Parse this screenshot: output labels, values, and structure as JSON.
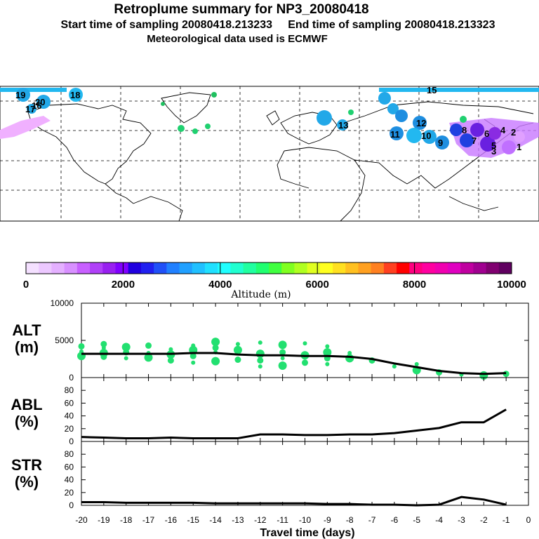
{
  "header": {
    "title": "Retroplume summary for NP3_20080418",
    "subtitle": "Start time of sampling 20080418.213233     End time of sampling 20080418.213323",
    "met": "Meteorological data used is ECMWF"
  },
  "map": {
    "plume_labels": [
      {
        "text": "19",
        "color": "#22a8e8"
      },
      {
        "text": "20",
        "color": "#22a8e8"
      },
      {
        "text": "18",
        "color": "#22a8e8"
      },
      {
        "text": "17",
        "color": "#22a8e8"
      },
      {
        "text": "16",
        "color": "#22a8e8"
      },
      {
        "text": "15",
        "color": "#22a8e8"
      },
      {
        "text": "13",
        "color": "#1e8ee0"
      },
      {
        "text": "12",
        "color": "#1e8ee0"
      },
      {
        "text": "11",
        "color": "#1e8ee0"
      },
      {
        "text": "10",
        "color": "#22a8e8"
      },
      {
        "text": "9",
        "color": "#1e8ee0"
      },
      {
        "text": "8",
        "color": "#2040e0"
      },
      {
        "text": "7",
        "color": "#2040e0"
      },
      {
        "text": "6",
        "color": "#8a2be2"
      },
      {
        "text": "5",
        "color": "#8a2be2"
      },
      {
        "text": "4",
        "color": "#9b30ff"
      },
      {
        "text": "3",
        "color": "#9b30ff"
      },
      {
        "text": "2",
        "color": "#c060ff"
      },
      {
        "text": "1",
        "color": "#e0a0ff"
      }
    ]
  },
  "colorbar": {
    "tick_labels": [
      "0",
      "2000",
      "4000",
      "6000",
      "8000",
      "10000"
    ],
    "title": "Altitude (m)",
    "colors": [
      "#f4e0ff",
      "#ecc8ff",
      "#e4b0ff",
      "#d890ff",
      "#c860ff",
      "#b040f8",
      "#9820f0",
      "#8000ff",
      "#2000e0",
      "#2020f0",
      "#2050f8",
      "#2080ff",
      "#20a0ff",
      "#20c0ff",
      "#20e0ff",
      "#20ffff",
      "#20ffd0",
      "#20ffa0",
      "#20ff70",
      "#40ff40",
      "#80ff20",
      "#b0ff20",
      "#e0ff20",
      "#ffff20",
      "#ffe020",
      "#ffc020",
      "#ffa020",
      "#ff8020",
      "#ff4020",
      "#ff0000",
      "#ff0080",
      "#ff00a0",
      "#f000b0",
      "#e000c0",
      "#c000a0",
      "#a00090",
      "#800070",
      "#600060"
    ]
  },
  "chart_data": [
    {
      "type": "line",
      "panel": "ALT",
      "ylabel": "ALT\n(m)",
      "ylabel_line1": "ALT",
      "ylabel_line2": "(m)",
      "ylim": [
        0,
        10000
      ],
      "ytick_labels": [
        "0",
        "5000",
        "10000"
      ],
      "x": [
        -20,
        -19,
        -18,
        -17,
        -16,
        -15,
        -14,
        -13,
        -12,
        -11,
        -10,
        -9,
        -8,
        -7,
        -6,
        -5,
        -4,
        -3,
        -2,
        -1
      ],
      "values": [
        3200,
        3200,
        3200,
        3200,
        3200,
        3300,
        3300,
        3100,
        3000,
        3000,
        2900,
        2900,
        2800,
        2500,
        1900,
        1400,
        900,
        600,
        500,
        600
      ],
      "scatter_color": "#22e070",
      "scatter": [
        {
          "x": -20,
          "ys": [
            2900,
            3500,
            4200
          ]
        },
        {
          "x": -19,
          "ys": [
            2800,
            3300,
            4000,
            4500
          ]
        },
        {
          "x": -18,
          "ys": [
            2600,
            3400,
            4100
          ]
        },
        {
          "x": -17,
          "ys": [
            2700,
            3300,
            4300
          ]
        },
        {
          "x": -16,
          "ys": [
            2300,
            3100,
            3800
          ]
        },
        {
          "x": -15,
          "ys": [
            2000,
            2900,
            3700,
            4300
          ]
        },
        {
          "x": -14,
          "ys": [
            2200,
            3400,
            4000,
            4800
          ]
        },
        {
          "x": -13,
          "ys": [
            2400,
            3700,
            4500
          ]
        },
        {
          "x": -12,
          "ys": [
            1500,
            2300,
            3200,
            4700
          ]
        },
        {
          "x": -11,
          "ys": [
            1600,
            2600,
            3400,
            4400
          ]
        },
        {
          "x": -10,
          "ys": [
            2000,
            3000,
            4600
          ]
        },
        {
          "x": -9,
          "ys": [
            1800,
            2600,
            3400,
            4200
          ]
        },
        {
          "x": -8,
          "ys": [
            2600,
            3300
          ]
        },
        {
          "x": -7,
          "ys": [
            2300
          ]
        },
        {
          "x": -6,
          "ys": [
            1500
          ]
        },
        {
          "x": -5,
          "ys": [
            1000,
            1800
          ]
        },
        {
          "x": -4,
          "ys": [
            700
          ]
        },
        {
          "x": -3,
          "ys": [
            400
          ]
        },
        {
          "x": -2,
          "ys": [
            300
          ]
        },
        {
          "x": -1,
          "ys": [
            500
          ]
        }
      ]
    },
    {
      "type": "line",
      "panel": "ABL",
      "ylabel_line1": "ABL",
      "ylabel_line2": "(%)",
      "ylim": [
        0,
        100
      ],
      "ytick_labels": [
        "0",
        "20",
        "40",
        "60",
        "80"
      ],
      "x": [
        -20,
        -19,
        -18,
        -17,
        -16,
        -15,
        -14,
        -13,
        -12,
        -11,
        -10,
        -9,
        -8,
        -7,
        -6,
        -5,
        -4,
        -3,
        -2,
        -1
      ],
      "values": [
        7,
        6,
        5,
        5,
        6,
        5,
        5,
        5,
        11,
        11,
        10,
        10,
        11,
        11,
        13,
        17,
        21,
        30,
        30,
        50
      ]
    },
    {
      "type": "line",
      "panel": "STR",
      "ylabel_line1": "STR",
      "ylabel_line2": "(%)",
      "ylim": [
        0,
        100
      ],
      "ytick_labels": [
        "0",
        "20",
        "40",
        "60",
        "80"
      ],
      "x": [
        -20,
        -19,
        -18,
        -17,
        -16,
        -15,
        -14,
        -13,
        -12,
        -11,
        -10,
        -9,
        -8,
        -7,
        -6,
        -5,
        -4,
        -3,
        -2,
        -1
      ],
      "values": [
        5,
        5,
        4,
        4,
        4,
        4,
        3,
        3,
        3,
        3,
        3,
        2,
        2,
        1,
        1,
        0,
        1,
        13,
        9,
        1
      ]
    }
  ],
  "xaxis": {
    "tick_labels": [
      "-20",
      "-19",
      "-18",
      "-17",
      "-16",
      "-15",
      "-14",
      "-13",
      "-12",
      "-11",
      "-10",
      "-9",
      "-8",
      "-7",
      "-6",
      "-5",
      "-4",
      "-3",
      "-2",
      "-1",
      "0"
    ],
    "xlabel": "Travel time (days)"
  }
}
